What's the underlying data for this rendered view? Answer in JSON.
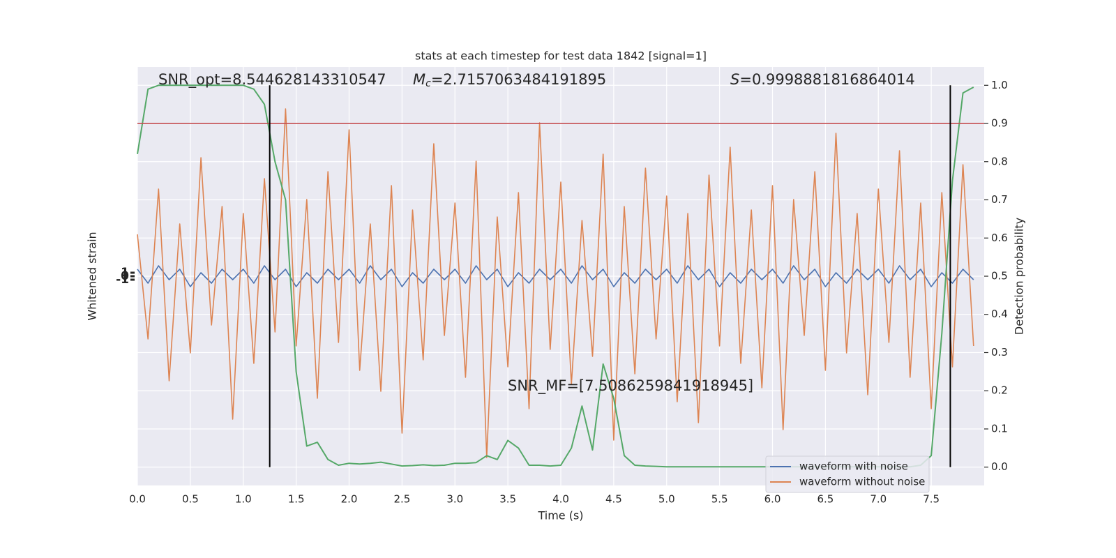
{
  "chart_data": {
    "type": "line",
    "title": "stats at each timestep for test data 1842 [signal=1]",
    "x_label": "Time (s)",
    "y_label": "Whitened strain",
    "y2_label": "Detection probability",
    "xlim": [
      0,
      8
    ],
    "ylim": [
      -60,
      60
    ],
    "y2lim": [
      -0.048,
      1.048
    ],
    "grid": true,
    "legend": "lower right",
    "xticks": [
      {
        "value": 0,
        "label": "0.0"
      },
      {
        "value": 0.5,
        "label": "0.5"
      },
      {
        "value": 1,
        "label": "1.0"
      },
      {
        "value": 1.5,
        "label": "1.5"
      },
      {
        "value": 2,
        "label": "2.0"
      },
      {
        "value": 2.5,
        "label": "2.5"
      },
      {
        "value": 3,
        "label": "3.0"
      },
      {
        "value": 3.5,
        "label": "3.5"
      },
      {
        "value": 4,
        "label": "4.0"
      },
      {
        "value": 4.5,
        "label": "4.5"
      },
      {
        "value": 5,
        "label": "5.0"
      },
      {
        "value": 5.5,
        "label": "5.5"
      },
      {
        "value": 6,
        "label": "6.0"
      },
      {
        "value": 6.5,
        "label": "6.5"
      },
      {
        "value": 7,
        "label": "7.0"
      },
      {
        "value": 7.5,
        "label": "7.5"
      }
    ],
    "yticks": [
      -1,
      0,
      1
    ],
    "y2ticks": [
      {
        "value": 0,
        "label": "0.0"
      },
      {
        "value": 0.1,
        "label": "0.1"
      },
      {
        "value": 0.2,
        "label": "0.2"
      },
      {
        "value": 0.3,
        "label": "0.3"
      },
      {
        "value": 0.4,
        "label": "0.4"
      },
      {
        "value": 0.5,
        "label": "0.5"
      },
      {
        "value": 0.6,
        "label": "0.6"
      },
      {
        "value": 0.7,
        "label": "0.7"
      },
      {
        "value": 0.8,
        "label": "0.8"
      },
      {
        "value": 0.9,
        "label": "0.9"
      },
      {
        "value": 1,
        "label": "1.0"
      }
    ],
    "x": [
      0,
      0.1,
      0.2,
      0.3,
      0.4,
      0.5,
      0.6,
      0.7,
      0.8,
      0.9,
      1,
      1.1,
      1.2,
      1.3,
      1.4,
      1.5,
      1.6,
      1.7,
      1.8,
      1.9,
      2,
      2.1,
      2.2,
      2.3,
      2.4,
      2.5,
      2.6,
      2.7,
      2.8,
      2.9,
      3,
      3.1,
      3.2,
      3.3,
      3.4,
      3.5,
      3.6,
      3.7,
      3.8,
      3.9,
      4,
      4.1,
      4.2,
      4.3,
      4.4,
      4.5,
      4.6,
      4.7,
      4.8,
      4.9,
      5,
      5.1,
      5.2,
      5.3,
      5.4,
      5.5,
      5.6,
      5.7,
      5.8,
      5.9,
      6,
      6.1,
      6.2,
      6.3,
      6.4,
      6.5,
      6.6,
      6.7,
      6.8,
      6.9,
      7,
      7.1,
      7.2,
      7.3,
      7.4,
      7.5,
      7.6,
      7.7,
      7.8,
      7.9
    ],
    "series": [
      {
        "name": "waveform with noise",
        "color": "#4c72b0",
        "values": [
          2,
          -2,
          3,
          -1,
          2,
          -3,
          1,
          -2,
          2,
          -1,
          2,
          -2,
          3,
          -1,
          2,
          -3,
          1,
          -2,
          2,
          -1,
          2,
          -2,
          3,
          -1,
          2,
          -3,
          1,
          -2,
          2,
          -1,
          2,
          -2,
          3,
          -1,
          2,
          -3,
          1,
          -2,
          2,
          -1,
          2,
          -2,
          3,
          -1,
          2,
          -3,
          1,
          -2,
          2,
          -1,
          2,
          -2,
          3,
          -1,
          2,
          -3,
          1,
          -2,
          2,
          -1,
          2,
          -2,
          3,
          -1,
          2,
          -3,
          1,
          -2,
          2,
          -1,
          2,
          -2,
          3,
          -1,
          2,
          -3,
          1,
          -2,
          2,
          -1
        ]
      },
      {
        "name": "waveform without noise",
        "color": "#dd8452",
        "values": [
          12,
          -18,
          25,
          -30,
          15,
          -22,
          34,
          -14,
          20,
          -41,
          18,
          -25,
          28,
          -16,
          48,
          -20,
          22,
          -35,
          30,
          -19,
          42,
          -27,
          15,
          -33,
          26,
          -45,
          19,
          -24,
          38,
          -17,
          21,
          -29,
          33,
          -52,
          17,
          -26,
          24,
          -38,
          44,
          -21,
          27,
          -31,
          16,
          -23,
          35,
          -47,
          20,
          -28,
          31,
          -18,
          23,
          -36,
          18,
          -42,
          29,
          -20,
          37,
          -25,
          19,
          -32,
          26,
          -44,
          22,
          -17,
          30,
          -27,
          41,
          -22,
          18,
          -34,
          25,
          -19,
          36,
          -29,
          21,
          -38,
          24,
          -26,
          32,
          -20
        ]
      },
      {
        "axis": "y2",
        "color": "#55a868",
        "values": [
          0.82,
          0.99,
          1,
          1,
          1,
          1,
          1,
          1,
          1,
          1,
          1,
          0.99,
          0.95,
          0.8,
          0.7,
          0.25,
          0.055,
          0.065,
          0.02,
          0.005,
          0.01,
          0.008,
          0.01,
          0.013,
          0.008,
          0.003,
          0.004,
          0.006,
          0.004,
          0.005,
          0.01,
          0.01,
          0.012,
          0.03,
          0.02,
          0.07,
          0.05,
          0.005,
          0.005,
          0.003,
          0.005,
          0.05,
          0.16,
          0.045,
          0.27,
          0.18,
          0.03,
          0.005,
          0.003,
          0.002,
          0.001,
          0.001,
          0.001,
          0.001,
          0.001,
          0.001,
          0.001,
          0.001,
          0.001,
          0.001,
          0.001,
          0.001,
          0.001,
          0.001,
          0.001,
          0.001,
          0.001,
          0.001,
          0.001,
          0.001,
          0.001,
          0.001,
          0.001,
          0.001,
          0.005,
          0.03,
          0.35,
          0.75,
          0.98,
          0.995
        ]
      }
    ],
    "threshold": {
      "value": 0.9,
      "axis": "y2",
      "color": "#c44e52"
    },
    "vlines": {
      "values": [
        1.25,
        7.68
      ],
      "color": "#000000",
      "span": [
        0,
        1
      ]
    },
    "annotations": [
      {
        "text": "SNR_opt=8.544628143310547"
      },
      {
        "symbol": "M",
        "subscript": "c",
        "text": "=2.7157063484191895"
      },
      {
        "symbol": "S",
        "text": "=0.9998881816864014"
      },
      {
        "text": "SNR_MF=[7.5086259841918945]"
      }
    ]
  }
}
